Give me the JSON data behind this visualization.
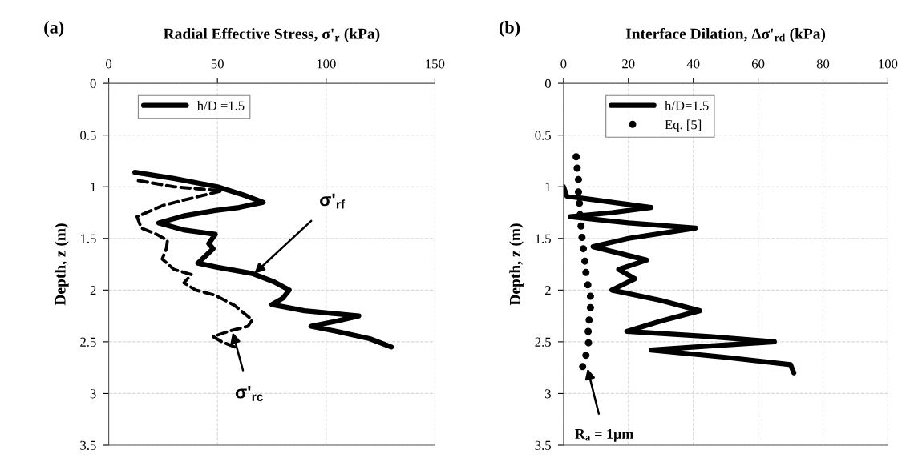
{
  "chart_data": [
    {
      "type": "line",
      "title": "(a)",
      "xlabel": "Radial Effective Stress, σ'$_{r}$ (kPa)",
      "ylabel": "Depth, z (m)",
      "xlim": [
        0,
        150
      ],
      "xticks": [
        0,
        50,
        100,
        150
      ],
      "ylim": [
        3.5,
        0
      ],
      "yticks": [
        0,
        0.5,
        1,
        1.5,
        2,
        2.5,
        3,
        3.5
      ],
      "grid": true,
      "legend": "top left",
      "series": [
        {
          "name": "h/D =1.5",
          "color": "#000000",
          "line_style": "solid",
          "x": [
            12,
            30,
            50,
            62,
            71,
            60,
            49,
            35,
            23,
            35,
            49,
            46,
            48,
            44,
            41,
            50,
            66,
            76,
            83,
            80,
            75,
            90,
            115,
            105,
            93,
            105,
            120,
            130
          ],
          "values": [
            0.86,
            0.92,
            1.0,
            1.08,
            1.15,
            1.2,
            1.23,
            1.28,
            1.35,
            1.42,
            1.46,
            1.55,
            1.6,
            1.68,
            1.74,
            1.78,
            1.84,
            1.92,
            2.0,
            2.08,
            2.14,
            2.2,
            2.25,
            2.3,
            2.35,
            2.4,
            2.47,
            2.55
          ]
        },
        {
          "color": "#000000",
          "line_style": "dashed",
          "x": [
            13.6,
            30,
            52,
            40,
            25,
            13,
            15,
            22,
            27,
            26.5,
            24.6,
            30,
            38,
            34.6,
            40,
            49,
            58,
            66,
            64,
            55,
            48,
            52,
            58
          ],
          "values": [
            0.94,
            1.0,
            1.04,
            1.1,
            1.18,
            1.29,
            1.4,
            1.46,
            1.52,
            1.6,
            1.7,
            1.8,
            1.85,
            1.93,
            2.0,
            2.05,
            2.15,
            2.29,
            2.35,
            2.4,
            2.45,
            2.5,
            2.55
          ]
        }
      ],
      "annotations": [
        {
          "text": "σ'$_{rf}$",
          "x": 67,
          "y": 1.84
        },
        {
          "text": "σ'$_{rc}$",
          "x": 57,
          "y": 2.41
        }
      ]
    },
    {
      "type": "line",
      "title": "(b)",
      "xlabel": "Interface Dilation, Δσ'$_{rd}$ (kPa)",
      "ylabel": "Depth, z (m)",
      "xlim": [
        0,
        100
      ],
      "xticks": [
        0,
        20,
        40,
        60,
        80,
        100
      ],
      "ylim": [
        3.5,
        0
      ],
      "yticks": [
        0,
        0.5,
        1,
        1.5,
        2,
        2.5,
        3,
        3.5
      ],
      "grid": true,
      "legend": "top left",
      "series": [
        {
          "name": "h/D=1.5",
          "color": "#000000",
          "line_style": "solid",
          "x": [
            0,
            1,
            15,
            27,
            15,
            2.1,
            20,
            40.7,
            20,
            9.1,
            18,
            25.6,
            17,
            22,
            14.9,
            30,
            42,
            30,
            19.5,
            45,
            65,
            45,
            27,
            50,
            70,
            71
          ],
          "values": [
            1.0,
            1.09,
            1.15,
            1.2,
            1.25,
            1.29,
            1.35,
            1.4,
            1.5,
            1.58,
            1.65,
            1.71,
            1.8,
            1.89,
            2.0,
            2.1,
            2.2,
            2.3,
            2.4,
            2.45,
            2.5,
            2.54,
            2.58,
            2.65,
            2.72,
            2.8
          ]
        },
        {
          "name": "Eq. [5]",
          "type": "scatter",
          "marker": "circle",
          "color": "#000000",
          "x": [
            3.9,
            4.2,
            4.6,
            4.6,
            4.9,
            5.1,
            5.4,
            5.7,
            6.1,
            6.6,
            6.9,
            7.5,
            8.3,
            8.3,
            7.9,
            7.6,
            7.7,
            6.9,
            5.9
          ],
          "values": [
            0.71,
            0.82,
            0.93,
            1.05,
            1.16,
            1.27,
            1.38,
            1.49,
            1.6,
            1.72,
            1.83,
            1.95,
            2.06,
            2.17,
            2.29,
            2.4,
            2.51,
            2.63,
            2.74
          ]
        }
      ],
      "annotations": [
        {
          "text": "R$_{a}$ = 1μm",
          "x": 7.4,
          "y": 2.76
        }
      ]
    }
  ]
}
